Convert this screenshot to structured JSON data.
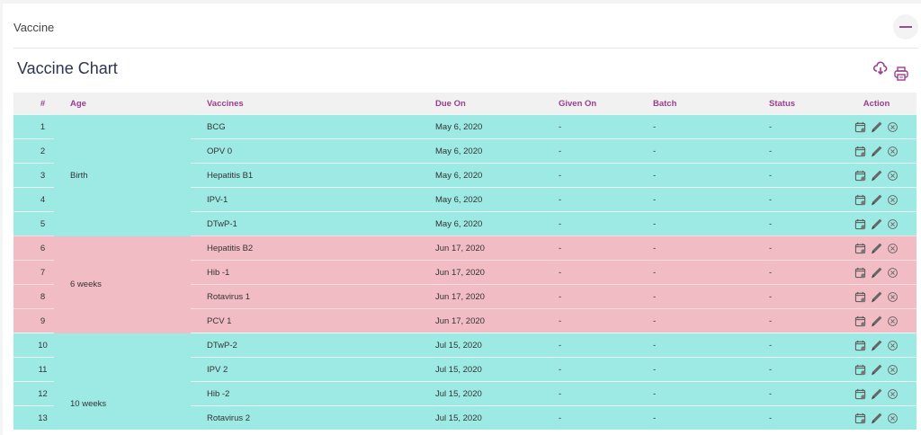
{
  "card": {
    "title": "Vaccine",
    "collapse_icon": "minus-icon"
  },
  "chart_title": "Vaccine Chart",
  "toolbar": {
    "download_icon": "cloud-download-icon",
    "print_icon": "printer-icon"
  },
  "colors": {
    "accent": "#9c3d8f",
    "group_a": "#9de9e3",
    "group_b": "#f2bcc4",
    "title": "#2d3550"
  },
  "table": {
    "headers": [
      "#",
      "Age",
      "Vaccines",
      "Due On",
      "Given On",
      "Batch",
      "Status",
      "Action"
    ],
    "groups": [
      {
        "age": "Birth",
        "color": "teal",
        "rows": [
          {
            "n": "1",
            "vaccine": "BCG",
            "due": "May 6, 2020",
            "given": "-",
            "batch": "-",
            "status": "-"
          },
          {
            "n": "2",
            "vaccine": "OPV 0",
            "due": "May 6, 2020",
            "given": "-",
            "batch": "-",
            "status": "-"
          },
          {
            "n": "3",
            "vaccine": "Hepatitis B1",
            "due": "May 6, 2020",
            "given": "-",
            "batch": "-",
            "status": "-"
          },
          {
            "n": "4",
            "vaccine": "IPV-1",
            "due": "May 6, 2020",
            "given": "-",
            "batch": "-",
            "status": "-"
          },
          {
            "n": "5",
            "vaccine": "DTwP-1",
            "due": "May 6, 2020",
            "given": "-",
            "batch": "-",
            "status": "-"
          }
        ]
      },
      {
        "age": "6 weeks",
        "color": "pink",
        "rows": [
          {
            "n": "6",
            "vaccine": "Hepatitis B2",
            "due": "Jun 17, 2020",
            "given": "-",
            "batch": "-",
            "status": "-"
          },
          {
            "n": "7",
            "vaccine": "Hib -1",
            "due": "Jun 17, 2020",
            "given": "-",
            "batch": "-",
            "status": "-"
          },
          {
            "n": "8",
            "vaccine": "Rotavirus 1",
            "due": "Jun 17, 2020",
            "given": "-",
            "batch": "-",
            "status": "-"
          },
          {
            "n": "9",
            "vaccine": "PCV 1",
            "due": "Jun 17, 2020",
            "given": "-",
            "batch": "-",
            "status": "-"
          }
        ]
      },
      {
        "age": "10 weeks",
        "color": "teal",
        "rows": [
          {
            "n": "10",
            "vaccine": "DTwP-2",
            "due": "Jul 15, 2020",
            "given": "-",
            "batch": "-",
            "status": "-"
          },
          {
            "n": "11",
            "vaccine": "IPV 2",
            "due": "Jul 15, 2020",
            "given": "-",
            "batch": "-",
            "status": "-"
          },
          {
            "n": "12",
            "vaccine": "Hib -2",
            "due": "Jul 15, 2020",
            "given": "-",
            "batch": "-",
            "status": "-"
          },
          {
            "n": "13",
            "vaccine": "Rotavirus 2",
            "due": "Jul 15, 2020",
            "given": "-",
            "batch": "-",
            "status": "-"
          }
        ]
      }
    ],
    "action_icons": [
      "calendar-icon",
      "pencil-icon",
      "close-circle-icon"
    ]
  }
}
